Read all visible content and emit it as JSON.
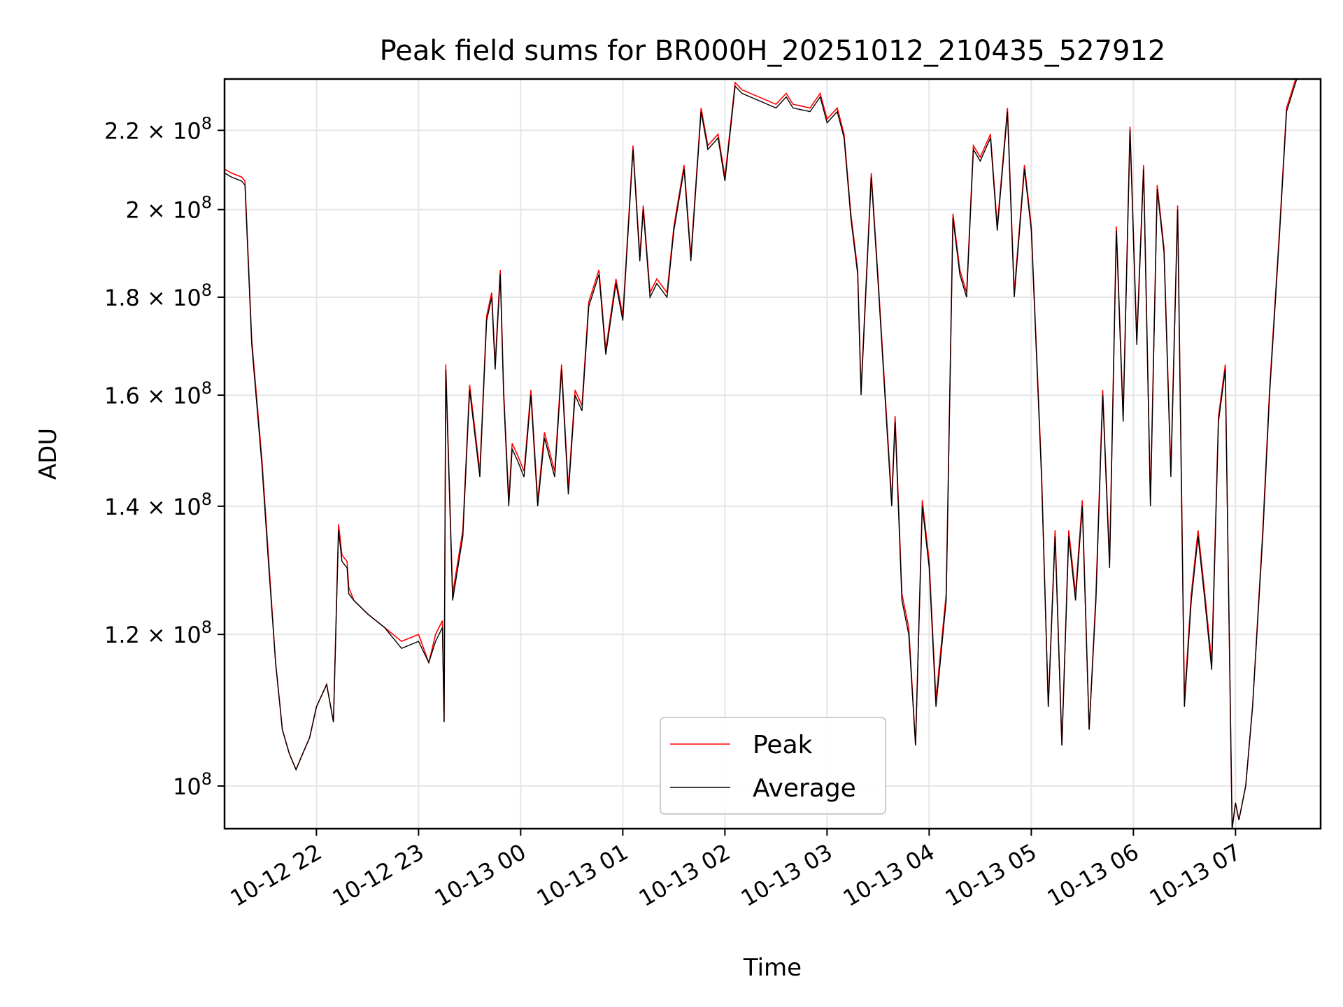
{
  "chart_data": {
    "type": "line",
    "title": "Peak field sums for BR000H_20251012_210435_527912",
    "xlabel": "Time",
    "ylabel": "ADU",
    "y_scale": "log",
    "xlim": [
      "2025-10-12 21:06",
      "2025-10-13 07:50"
    ],
    "ylim": [
      95000000,
      234000000
    ],
    "grid": true,
    "legend_position": "lower-center",
    "x_ticks": [
      "10-12 22",
      "10-12 23",
      "10-13 00",
      "10-13 01",
      "10-13 02",
      "10-13 03",
      "10-13 04",
      "10-13 05",
      "10-13 06",
      "10-13 07"
    ],
    "y_ticks": [
      {
        "value": 100000000,
        "mantissa": "",
        "exponent": "8"
      },
      {
        "value": 120000000,
        "mantissa": "1.2",
        "exponent": "8"
      },
      {
        "value": 140000000,
        "mantissa": "1.4",
        "exponent": "8"
      },
      {
        "value": 160000000,
        "mantissa": "1.6",
        "exponent": "8"
      },
      {
        "value": 180000000,
        "mantissa": "1.8",
        "exponent": "8"
      },
      {
        "value": 200000000,
        "mantissa": "2",
        "exponent": "8"
      },
      {
        "value": 220000000,
        "mantissa": "2.2",
        "exponent": "8"
      }
    ],
    "series": [
      {
        "name": "Peak",
        "color": "#ff0000"
      },
      {
        "name": "Average",
        "color": "#000000"
      }
    ],
    "x": [
      "2025-10-12 21:06",
      "2025-10-12 21:10",
      "2025-10-12 21:16",
      "2025-10-12 21:18",
      "2025-10-12 21:22",
      "2025-10-12 21:28",
      "2025-10-12 21:32",
      "2025-10-12 21:36",
      "2025-10-12 21:40",
      "2025-10-12 21:44",
      "2025-10-12 21:48",
      "2025-10-12 21:52",
      "2025-10-12 21:56",
      "2025-10-12 22:00",
      "2025-10-12 22:06",
      "2025-10-12 22:10",
      "2025-10-12 22:13",
      "2025-10-12 22:15",
      "2025-10-12 22:18",
      "2025-10-12 22:19",
      "2025-10-12 22:22",
      "2025-10-12 22:30",
      "2025-10-12 22:40",
      "2025-10-12 22:50",
      "2025-10-12 23:00",
      "2025-10-12 23:06",
      "2025-10-12 23:10",
      "2025-10-12 23:14",
      "2025-10-12 23:15",
      "2025-10-12 23:16",
      "2025-10-12 23:20",
      "2025-10-12 23:26",
      "2025-10-12 23:30",
      "2025-10-12 23:36",
      "2025-10-12 23:40",
      "2025-10-12 23:43",
      "2025-10-12 23:45",
      "2025-10-12 23:48",
      "2025-10-12 23:50",
      "2025-10-12 23:53",
      "2025-10-12 23:55",
      "2025-10-12 23:58",
      "2025-10-13 00:02",
      "2025-10-13 00:06",
      "2025-10-13 00:10",
      "2025-10-13 00:14",
      "2025-10-13 00:20",
      "2025-10-13 00:24",
      "2025-10-13 00:28",
      "2025-10-13 00:32",
      "2025-10-13 00:36",
      "2025-10-13 00:40",
      "2025-10-13 00:46",
      "2025-10-13 00:50",
      "2025-10-13 00:56",
      "2025-10-13 01:00",
      "2025-10-13 01:06",
      "2025-10-13 01:10",
      "2025-10-13 01:12",
      "2025-10-13 01:16",
      "2025-10-13 01:20",
      "2025-10-13 01:26",
      "2025-10-13 01:30",
      "2025-10-13 01:36",
      "2025-10-13 01:40",
      "2025-10-13 01:46",
      "2025-10-13 01:50",
      "2025-10-13 01:56",
      "2025-10-13 02:00",
      "2025-10-13 02:06",
      "2025-10-13 02:10",
      "2025-10-13 02:20",
      "2025-10-13 02:30",
      "2025-10-13 02:36",
      "2025-10-13 02:40",
      "2025-10-13 02:50",
      "2025-10-13 02:56",
      "2025-10-13 03:00",
      "2025-10-13 03:06",
      "2025-10-13 03:10",
      "2025-10-13 03:14",
      "2025-10-13 03:18",
      "2025-10-13 03:20",
      "2025-10-13 03:26",
      "2025-10-13 03:30",
      "2025-10-13 03:34",
      "2025-10-13 03:38",
      "2025-10-13 03:40",
      "2025-10-13 03:44",
      "2025-10-13 03:48",
      "2025-10-13 03:52",
      "2025-10-13 03:56",
      "2025-10-13 04:00",
      "2025-10-13 04:04",
      "2025-10-13 04:10",
      "2025-10-13 04:14",
      "2025-10-13 04:18",
      "2025-10-13 04:22",
      "2025-10-13 04:26",
      "2025-10-13 04:30",
      "2025-10-13 04:36",
      "2025-10-13 04:40",
      "2025-10-13 04:46",
      "2025-10-13 04:50",
      "2025-10-13 04:56",
      "2025-10-13 05:00",
      "2025-10-13 05:06",
      "2025-10-13 05:10",
      "2025-10-13 05:14",
      "2025-10-13 05:18",
      "2025-10-13 05:22",
      "2025-10-13 05:26",
      "2025-10-13 05:30",
      "2025-10-13 05:34",
      "2025-10-13 05:38",
      "2025-10-13 05:42",
      "2025-10-13 05:46",
      "2025-10-13 05:50",
      "2025-10-13 05:54",
      "2025-10-13 05:58",
      "2025-10-13 06:02",
      "2025-10-13 06:06",
      "2025-10-13 06:10",
      "2025-10-13 06:14",
      "2025-10-13 06:18",
      "2025-10-13 06:22",
      "2025-10-13 06:26",
      "2025-10-13 06:30",
      "2025-10-13 06:34",
      "2025-10-13 06:38",
      "2025-10-13 06:42",
      "2025-10-13 06:46",
      "2025-10-13 06:50",
      "2025-10-13 06:54",
      "2025-10-13 06:58",
      "2025-10-13 07:00",
      "2025-10-13 07:02",
      "2025-10-13 07:06",
      "2025-10-13 07:10",
      "2025-10-13 07:16",
      "2025-10-13 07:20",
      "2025-10-13 07:26",
      "2025-10-13 07:30",
      "2025-10-13 07:36",
      "2025-10-13 07:40",
      "2025-10-13 07:46",
      "2025-10-13 07:50"
    ],
    "avg": [
      209,
      208,
      207,
      206,
      170,
      147,
      130,
      116,
      107,
      104,
      102,
      104,
      106,
      110,
      113,
      108,
      136,
      131,
      130,
      126,
      125,
      123,
      121,
      118,
      119,
      116,
      119,
      121,
      108,
      165,
      125,
      135,
      161,
      145,
      175,
      180,
      165,
      185,
      160,
      140,
      150,
      148,
      145,
      160,
      140,
      152,
      145,
      165,
      142,
      160,
      157,
      178,
      185,
      168,
      183,
      175,
      215,
      188,
      200,
      180,
      183,
      180,
      195,
      210,
      188,
      225,
      215,
      218,
      207,
      232,
      230,
      228,
      226,
      229,
      226,
      225,
      229,
      222,
      225,
      218,
      198,
      185,
      160,
      208,
      183,
      160,
      140,
      155,
      125,
      120,
      105,
      140,
      130,
      110,
      125,
      198,
      185,
      180,
      215,
      212,
      218,
      195,
      225,
      180,
      210,
      195,
      145,
      110,
      135,
      105,
      135,
      125,
      140,
      107,
      125,
      160,
      130,
      195,
      155,
      220,
      170,
      210,
      140,
      205,
      190,
      145,
      200,
      110,
      125,
      135,
      125,
      115,
      155,
      165,
      95,
      98,
      96,
      100,
      110,
      135,
      160,
      195,
      225,
      234
    ],
    "peak": [
      210,
      209,
      208,
      207,
      171,
      148,
      131,
      116,
      107,
      104,
      102,
      104,
      106,
      110,
      113,
      108,
      137,
      132,
      131,
      127,
      125,
      123,
      121,
      119,
      120,
      116,
      120,
      122,
      108,
      166,
      126,
      136,
      162,
      146,
      176,
      181,
      166,
      186,
      161,
      141,
      151,
      149,
      146,
      161,
      141,
      153,
      146,
      166,
      143,
      161,
      158,
      179,
      186,
      169,
      184,
      176,
      216,
      189,
      201,
      181,
      184,
      181,
      196,
      211,
      189,
      226,
      216,
      219,
      208,
      233,
      231,
      229,
      227,
      230,
      227,
      226,
      230,
      223,
      226,
      219,
      199,
      186,
      161,
      209,
      184,
      161,
      141,
      156,
      126,
      121,
      105,
      141,
      131,
      111,
      126,
      199,
      186,
      181,
      216,
      213,
      219,
      196,
      226,
      181,
      211,
      196,
      146,
      110,
      136,
      105,
      136,
      126,
      141,
      107,
      126,
      161,
      131,
      196,
      156,
      221,
      171,
      211,
      141,
      206,
      191,
      146,
      201,
      111,
      126,
      136,
      126,
      116,
      156,
      166,
      95,
      98,
      96,
      100,
      110,
      136,
      161,
      196,
      226,
      235
    ]
  }
}
